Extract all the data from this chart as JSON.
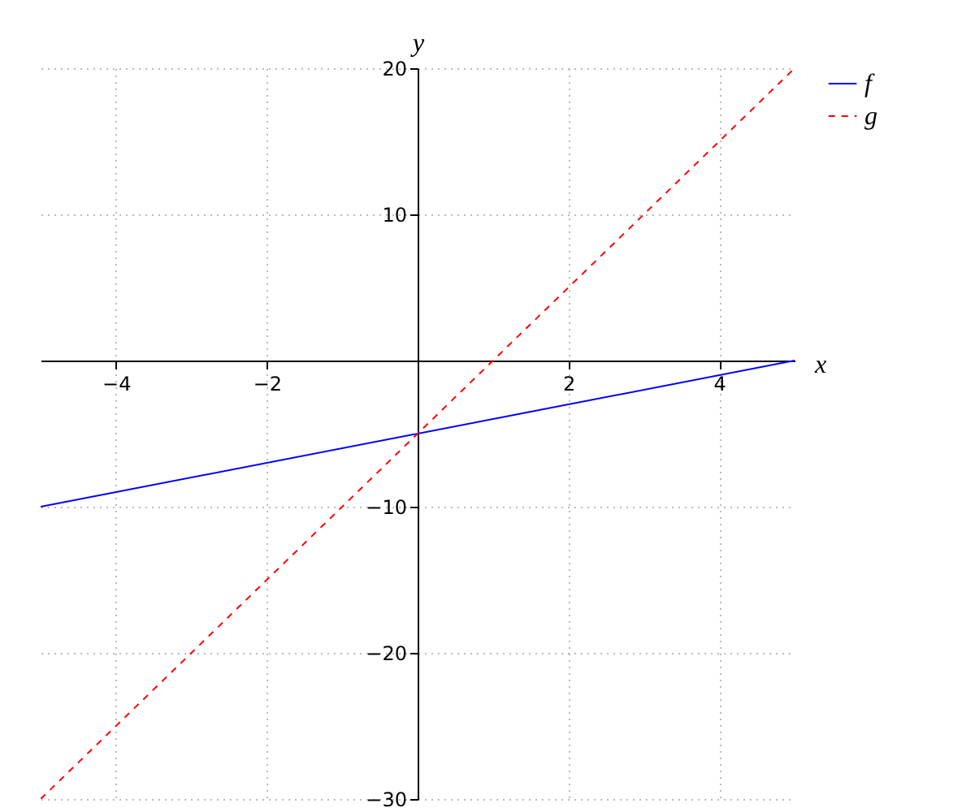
{
  "chart_data": {
    "type": "line",
    "xlabel": "x",
    "ylabel": "y",
    "x": [
      -5,
      5
    ],
    "series": [
      {
        "name": "f",
        "color": "#0000ff",
        "values": [
          -10,
          0
        ],
        "line_style": "solid"
      },
      {
        "name": "g",
        "color": "#ff0000",
        "values": [
          -30,
          20
        ],
        "line_style": "dashed"
      }
    ],
    "xlim": [
      -5,
      5
    ],
    "ylim": [
      -30,
      20
    ],
    "xticks": [
      -4,
      -2,
      2,
      4
    ],
    "yticks": [
      -30,
      -20,
      -10,
      10,
      20
    ],
    "grid": true,
    "legend": "top right",
    "marker": "none"
  }
}
